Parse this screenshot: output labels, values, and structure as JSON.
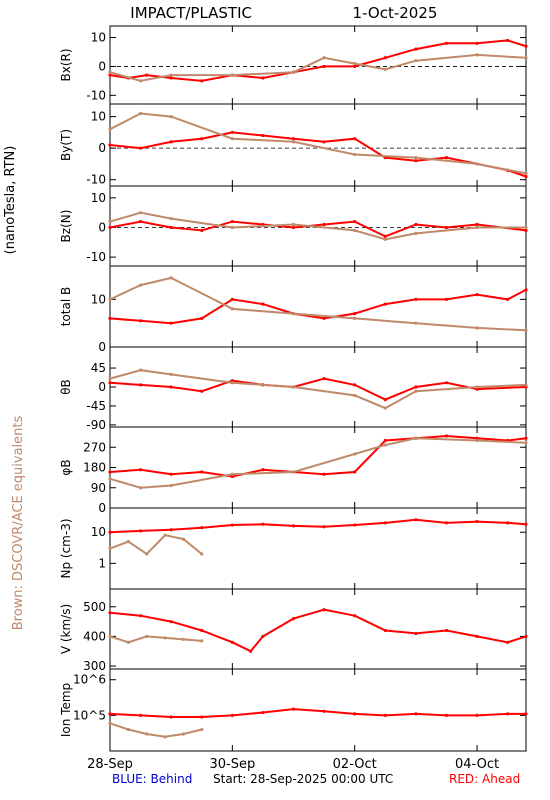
{
  "header": {
    "title": "IMPACT/PLASTIC",
    "date": "1-Oct-2025"
  },
  "side_labels": {
    "units": "(nanoTesla, RTN)",
    "brown_note": "Brown: DSCOVR/ACE equivalents"
  },
  "footer": {
    "behind": "BLUE: Behind",
    "start": "Start: 28-Sep-2025 00:00 UTC",
    "ahead": "RED: Ahead"
  },
  "colors": {
    "ahead": "#ff0000",
    "brown": "#c08a6a",
    "behind": "#0000cc",
    "axis": "#000000"
  },
  "chart_data": [
    {
      "type": "line",
      "ylabel": "Bx(R)",
      "ylim": [
        -13,
        14
      ],
      "yticks": [
        10,
        0,
        -10
      ],
      "zero_line": true,
      "series": [
        {
          "name": "Ahead",
          "color": "#ff0000",
          "points": [
            [
              0,
              -3
            ],
            [
              0.3,
              -4
            ],
            [
              0.6,
              -3
            ],
            [
              1,
              -4
            ],
            [
              1.5,
              -5
            ],
            [
              2,
              -3
            ],
            [
              2.5,
              -4
            ],
            [
              3,
              -2
            ],
            [
              3.5,
              0
            ],
            [
              4,
              0
            ],
            [
              4.5,
              3
            ],
            [
              5,
              6
            ],
            [
              5.5,
              8
            ],
            [
              6,
              8
            ],
            [
              6.5,
              9
            ],
            [
              6.8,
              7
            ]
          ]
        },
        {
          "name": "Brown",
          "color": "#c08a6a",
          "points": [
            [
              0,
              -2
            ],
            [
              0.5,
              -5
            ],
            [
              1,
              -3
            ],
            [
              2,
              -3
            ],
            [
              3,
              -2
            ],
            [
              3.5,
              3
            ],
            [
              4,
              1
            ],
            [
              4.5,
              -1
            ],
            [
              5,
              2
            ],
            [
              6,
              4
            ],
            [
              6.8,
              3
            ]
          ]
        }
      ]
    },
    {
      "type": "line",
      "ylabel": "By(T)",
      "ylim": [
        -12,
        14
      ],
      "yticks": [
        10,
        0,
        -10
      ],
      "zero_line": true,
      "series": [
        {
          "name": "Ahead",
          "color": "#ff0000",
          "points": [
            [
              0,
              1
            ],
            [
              0.5,
              0
            ],
            [
              1,
              2
            ],
            [
              1.5,
              3
            ],
            [
              2,
              5
            ],
            [
              2.5,
              4
            ],
            [
              3,
              3
            ],
            [
              3.5,
              2
            ],
            [
              4,
              3
            ],
            [
              4.5,
              -3
            ],
            [
              5,
              -4
            ],
            [
              5.5,
              -3
            ],
            [
              6,
              -5
            ],
            [
              6.5,
              -7
            ],
            [
              6.8,
              -9
            ]
          ]
        },
        {
          "name": "Brown",
          "color": "#c08a6a",
          "points": [
            [
              0,
              6
            ],
            [
              0.5,
              11
            ],
            [
              1,
              10
            ],
            [
              2,
              3
            ],
            [
              3,
              2
            ],
            [
              4,
              -2
            ],
            [
              5,
              -3
            ],
            [
              6,
              -5
            ],
            [
              6.8,
              -8
            ]
          ]
        }
      ]
    },
    {
      "type": "line",
      "ylabel": "Bz(N)",
      "ylim": [
        -13,
        14
      ],
      "yticks": [
        10,
        0,
        -10
      ],
      "zero_line": true,
      "series": [
        {
          "name": "Ahead",
          "color": "#ff0000",
          "points": [
            [
              0,
              0
            ],
            [
              0.5,
              2
            ],
            [
              1,
              0
            ],
            [
              1.5,
              -1
            ],
            [
              2,
              2
            ],
            [
              2.5,
              1
            ],
            [
              3,
              0
            ],
            [
              3.5,
              1
            ],
            [
              4,
              2
            ],
            [
              4.5,
              -3
            ],
            [
              5,
              1
            ],
            [
              5.5,
              0
            ],
            [
              6,
              1
            ],
            [
              6.8,
              -1
            ]
          ]
        },
        {
          "name": "Brown",
          "color": "#c08a6a",
          "points": [
            [
              0,
              2
            ],
            [
              0.5,
              5
            ],
            [
              1,
              3
            ],
            [
              2,
              0
            ],
            [
              3,
              1
            ],
            [
              4,
              -1
            ],
            [
              4.5,
              -4
            ],
            [
              5,
              -2
            ],
            [
              6,
              0
            ],
            [
              6.8,
              0
            ]
          ]
        }
      ]
    },
    {
      "type": "line",
      "ylabel": "total B",
      "ylim": [
        0,
        17
      ],
      "yticks": [
        10,
        0
      ],
      "zero_line": false,
      "series": [
        {
          "name": "Ahead",
          "color": "#ff0000",
          "points": [
            [
              0,
              6
            ],
            [
              0.5,
              5.5
            ],
            [
              1,
              5
            ],
            [
              1.5,
              6
            ],
            [
              2,
              10
            ],
            [
              2.5,
              9
            ],
            [
              3,
              7
            ],
            [
              3.5,
              6
            ],
            [
              4,
              7
            ],
            [
              4.5,
              9
            ],
            [
              5,
              10
            ],
            [
              5.5,
              10
            ],
            [
              6,
              11
            ],
            [
              6.5,
              10
            ],
            [
              6.8,
              12
            ]
          ]
        },
        {
          "name": "Brown",
          "color": "#c08a6a",
          "points": [
            [
              0,
              10
            ],
            [
              0.5,
              13
            ],
            [
              1,
              14.5
            ],
            [
              2,
              8
            ],
            [
              3,
              7
            ],
            [
              4,
              6
            ],
            [
              5,
              5
            ],
            [
              6,
              4
            ],
            [
              6.8,
              3.5
            ]
          ]
        }
      ]
    },
    {
      "type": "line",
      "ylabel": "θB",
      "ylim": [
        -95,
        95
      ],
      "yticks": [
        45,
        0,
        -45,
        -90
      ],
      "zero_line": false,
      "series": [
        {
          "name": "Ahead",
          "color": "#ff0000",
          "points": [
            [
              0,
              10
            ],
            [
              0.5,
              5
            ],
            [
              1,
              0
            ],
            [
              1.5,
              -10
            ],
            [
              2,
              15
            ],
            [
              2.5,
              5
            ],
            [
              3,
              0
            ],
            [
              3.5,
              20
            ],
            [
              4,
              5
            ],
            [
              4.5,
              -30
            ],
            [
              5,
              0
            ],
            [
              5.5,
              10
            ],
            [
              6,
              -5
            ],
            [
              6.8,
              0
            ]
          ]
        },
        {
          "name": "Brown",
          "color": "#c08a6a",
          "points": [
            [
              0,
              20
            ],
            [
              0.5,
              40
            ],
            [
              1,
              30
            ],
            [
              2,
              10
            ],
            [
              3,
              0
            ],
            [
              4,
              -20
            ],
            [
              4.5,
              -50
            ],
            [
              5,
              -10
            ],
            [
              6,
              0
            ],
            [
              6.8,
              5
            ]
          ]
        }
      ]
    },
    {
      "type": "line",
      "ylabel": "φB",
      "ylim": [
        0,
        360
      ],
      "yticks": [
        270,
        180,
        90,
        0
      ],
      "zero_line": false,
      "series": [
        {
          "name": "Ahead",
          "color": "#ff0000",
          "points": [
            [
              0,
              160
            ],
            [
              0.5,
              170
            ],
            [
              1,
              150
            ],
            [
              1.5,
              160
            ],
            [
              2,
              140
            ],
            [
              2.5,
              170
            ],
            [
              3,
              160
            ],
            [
              3.5,
              150
            ],
            [
              4,
              160
            ],
            [
              4.5,
              300
            ],
            [
              5,
              310
            ],
            [
              5.5,
              320
            ],
            [
              6,
              310
            ],
            [
              6.5,
              300
            ],
            [
              6.8,
              310
            ]
          ]
        },
        {
          "name": "Brown",
          "color": "#c08a6a",
          "points": [
            [
              0,
              130
            ],
            [
              0.5,
              90
            ],
            [
              1,
              100
            ],
            [
              2,
              150
            ],
            [
              3,
              160
            ],
            [
              4,
              240
            ],
            [
              4.5,
              280
            ],
            [
              5,
              310
            ],
            [
              6,
              300
            ],
            [
              6.8,
              290
            ]
          ]
        }
      ]
    },
    {
      "type": "line",
      "ylabel": "Np (cm-3)",
      "ylog": true,
      "ylim": [
        0.15,
        60
      ],
      "yticks": [
        10,
        1
      ],
      "zero_line": false,
      "series": [
        {
          "name": "Ahead",
          "color": "#ff0000",
          "points": [
            [
              0,
              10
            ],
            [
              0.5,
              11
            ],
            [
              1,
              12
            ],
            [
              1.5,
              14
            ],
            [
              2,
              17
            ],
            [
              2.5,
              18
            ],
            [
              3,
              16
            ],
            [
              3.5,
              15
            ],
            [
              4,
              17
            ],
            [
              4.5,
              20
            ],
            [
              5,
              25
            ],
            [
              5.5,
              20
            ],
            [
              6,
              22
            ],
            [
              6.5,
              20
            ],
            [
              6.8,
              18
            ]
          ]
        },
        {
          "name": "Brown",
          "color": "#c08a6a",
          "points": [
            [
              0,
              3
            ],
            [
              0.3,
              5
            ],
            [
              0.6,
              2
            ],
            [
              0.9,
              8
            ],
            [
              1.2,
              6
            ],
            [
              1.5,
              2
            ]
          ]
        }
      ]
    },
    {
      "type": "line",
      "ylabel": "V (km/s)",
      "ylim": [
        290,
        560
      ],
      "yticks": [
        500,
        400,
        300
      ],
      "zero_line": false,
      "series": [
        {
          "name": "Ahead",
          "color": "#ff0000",
          "points": [
            [
              0,
              480
            ],
            [
              0.5,
              470
            ],
            [
              1,
              450
            ],
            [
              1.5,
              420
            ],
            [
              2,
              380
            ],
            [
              2.3,
              350
            ],
            [
              2.5,
              400
            ],
            [
              3,
              460
            ],
            [
              3.5,
              490
            ],
            [
              4,
              470
            ],
            [
              4.5,
              420
            ],
            [
              5,
              410
            ],
            [
              5.5,
              420
            ],
            [
              6,
              400
            ],
            [
              6.5,
              380
            ],
            [
              6.8,
              400
            ]
          ]
        },
        {
          "name": "Brown",
          "color": "#c08a6a",
          "points": [
            [
              0,
              400
            ],
            [
              0.3,
              380
            ],
            [
              0.6,
              400
            ],
            [
              0.9,
              395
            ],
            [
              1.2,
              390
            ],
            [
              1.5,
              385
            ]
          ]
        }
      ]
    },
    {
      "type": "line",
      "ylabel": "Ion Temp",
      "ylog": true,
      "ylim": [
        10000,
        2000000
      ],
      "yticks": [
        1000000,
        100000
      ],
      "zero_line": false,
      "series": [
        {
          "name": "Ahead",
          "color": "#ff0000",
          "points": [
            [
              0,
              110000
            ],
            [
              0.5,
              100000
            ],
            [
              1,
              90000
            ],
            [
              1.5,
              90000
            ],
            [
              2,
              100000
            ],
            [
              2.5,
              120000
            ],
            [
              3,
              150000
            ],
            [
              3.5,
              130000
            ],
            [
              4,
              110000
            ],
            [
              4.5,
              100000
            ],
            [
              5,
              110000
            ],
            [
              5.5,
              100000
            ],
            [
              6,
              100000
            ],
            [
              6.5,
              110000
            ],
            [
              6.8,
              110000
            ]
          ]
        },
        {
          "name": "Brown",
          "color": "#c08a6a",
          "points": [
            [
              0,
              60000
            ],
            [
              0.3,
              40000
            ],
            [
              0.6,
              30000
            ],
            [
              0.9,
              25000
            ],
            [
              1.2,
              30000
            ],
            [
              1.5,
              40000
            ]
          ]
        }
      ]
    }
  ],
  "x_axis": {
    "ticks": [
      {
        "t": 0,
        "label": "28-Sep"
      },
      {
        "t": 2,
        "label": "30-Sep"
      },
      {
        "t": 4,
        "label": "02-Oct"
      },
      {
        "t": 6,
        "label": "04-Oct"
      }
    ],
    "range_days": [
      0,
      6.8
    ]
  }
}
